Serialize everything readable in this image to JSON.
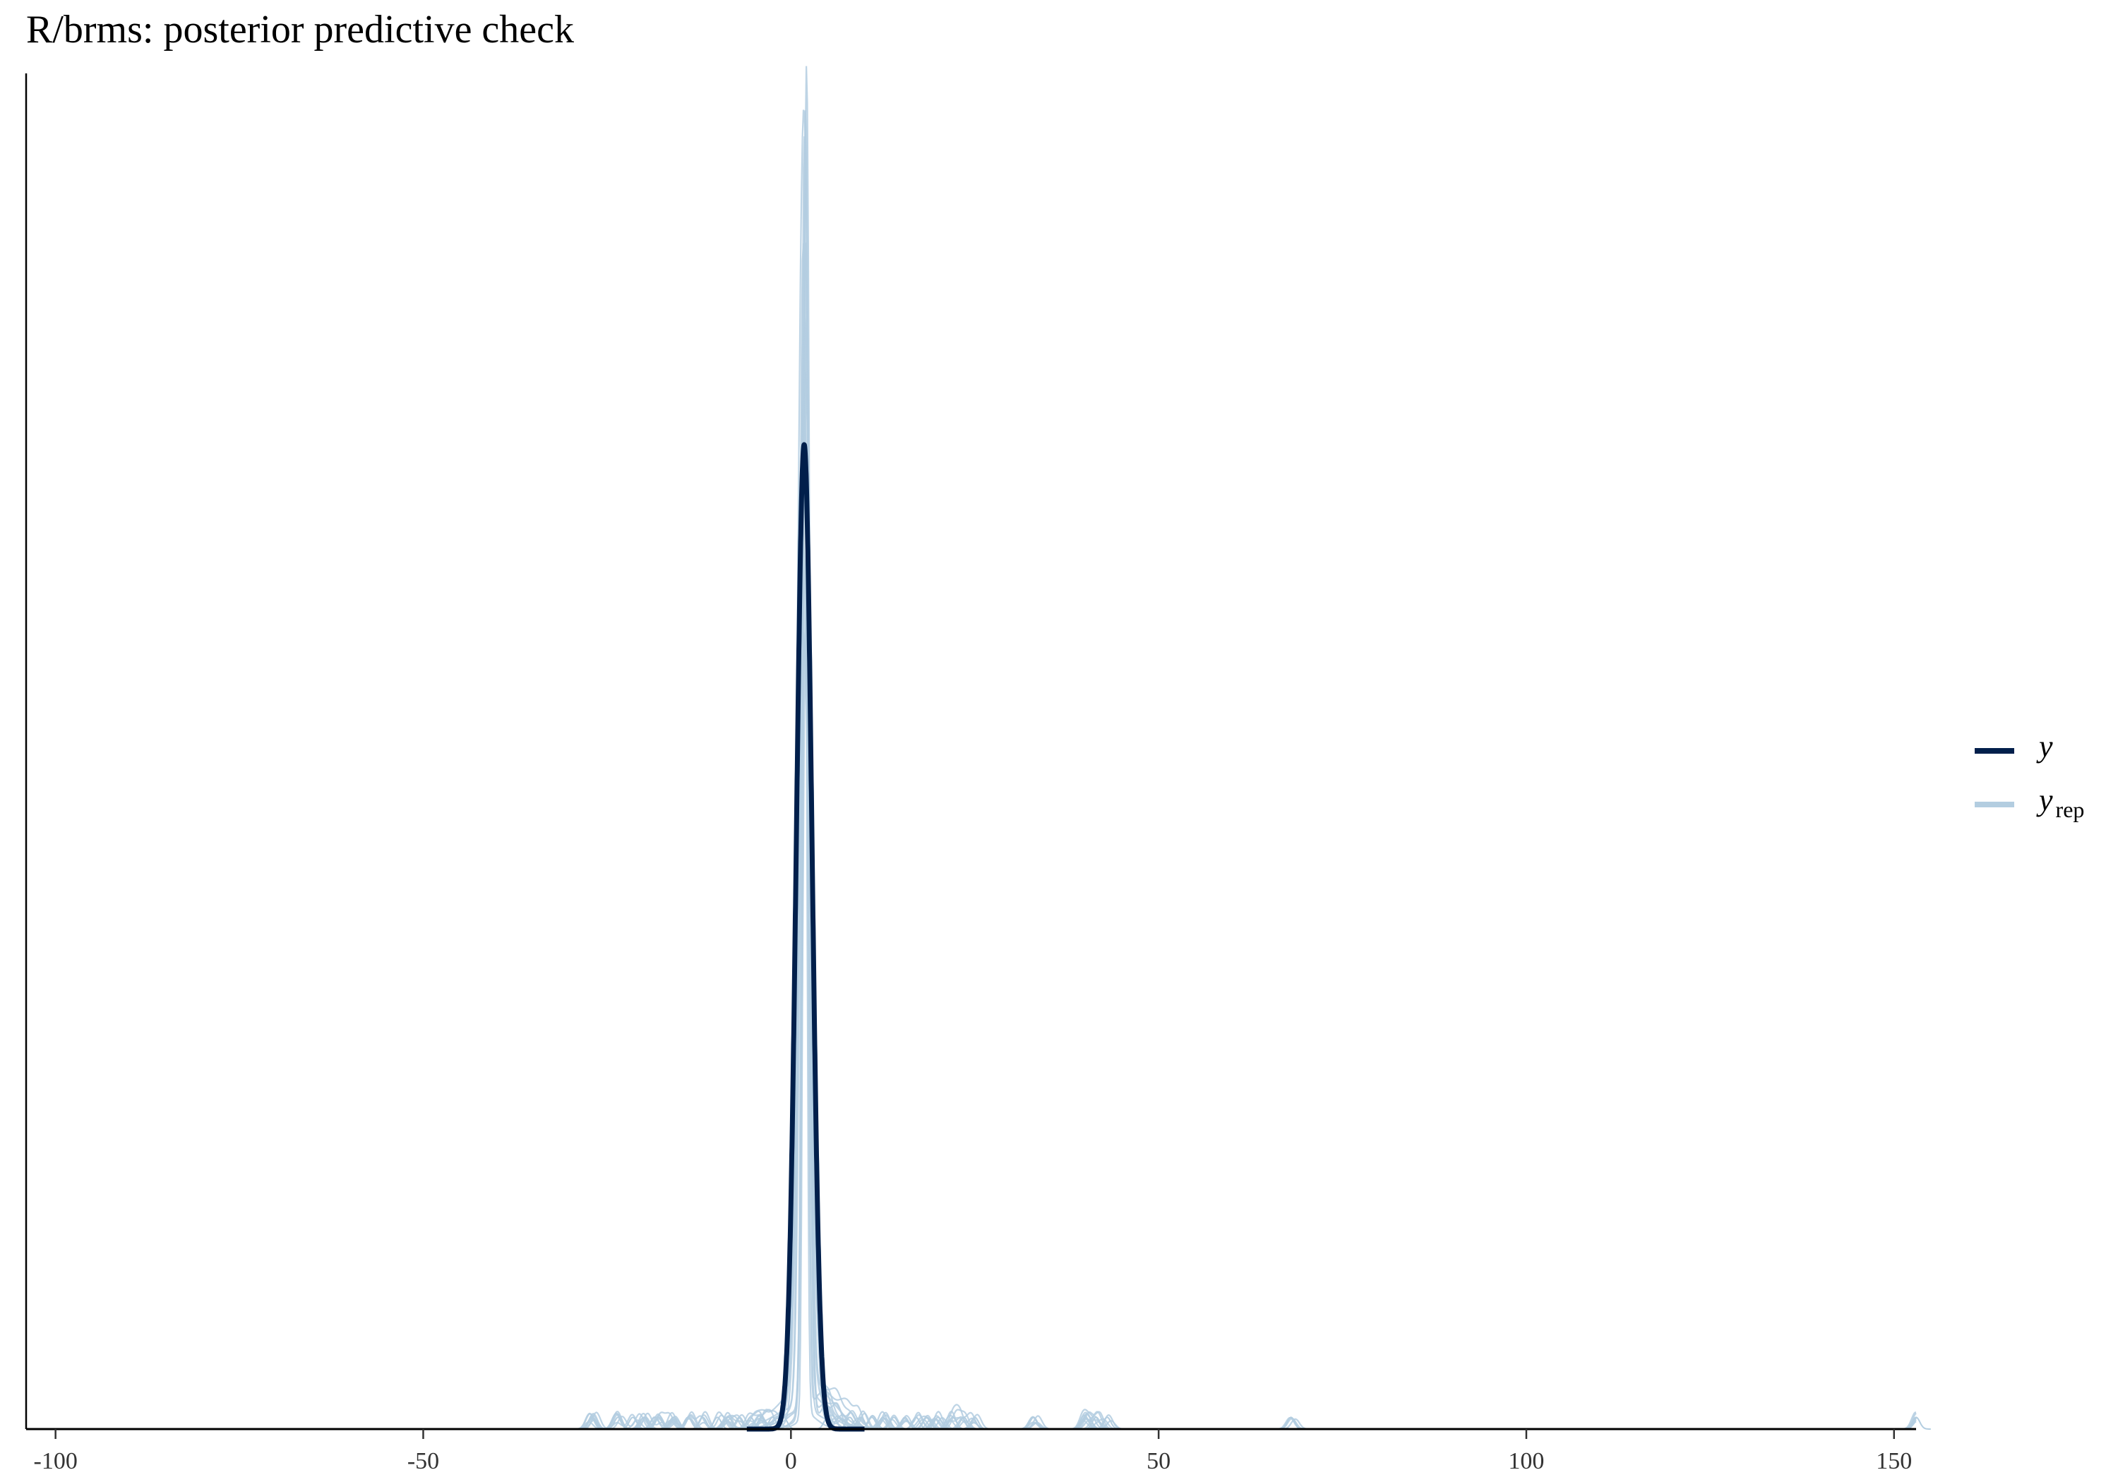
{
  "chart_data": {
    "type": "line",
    "title": "R/brms: posterior predictive check",
    "xlabel": "",
    "ylabel": "",
    "xlim": [
      -104,
      153
    ],
    "ylim": [
      0,
      1.38
    ],
    "grid": false,
    "y_axis_ticks": false,
    "x_ticks": [
      -100,
      -50,
      0,
      50,
      100,
      150
    ],
    "x_tick_labels": [
      "-100",
      "-50",
      "0",
      "50",
      "100",
      "150"
    ],
    "legend": {
      "position": "right",
      "entries": [
        {
          "key": "y",
          "label": "y",
          "subscript": ""
        },
        {
          "key": "yrep",
          "label": "y",
          "subscript": "rep"
        }
      ]
    },
    "colors": {
      "y": "#011f4b",
      "yrep": "#b3cde0"
    },
    "series": [
      {
        "key": "y",
        "shape": "gaussian_density",
        "center": 1.8,
        "sd": 1.05,
        "peak": 1.0
      },
      {
        "key": "yrep",
        "shape": "overlaid_density_draws",
        "center": 1.9,
        "peak_range": [
          0.65,
          1.38
        ],
        "sd_range": [
          0.3,
          0.9
        ],
        "outlier_bumps": [
          -27,
          -23.5,
          -21.5,
          -20,
          -18,
          -16,
          -14,
          -12,
          -10,
          -8.5,
          -7,
          -5.5,
          -4,
          -2.5,
          -1,
          5,
          6.5,
          8,
          9.5,
          11,
          12.5,
          14,
          15.5,
          17,
          18.5,
          20,
          22,
          23.5,
          25,
          33,
          40,
          41.5,
          43,
          68,
          153
        ]
      }
    ]
  }
}
